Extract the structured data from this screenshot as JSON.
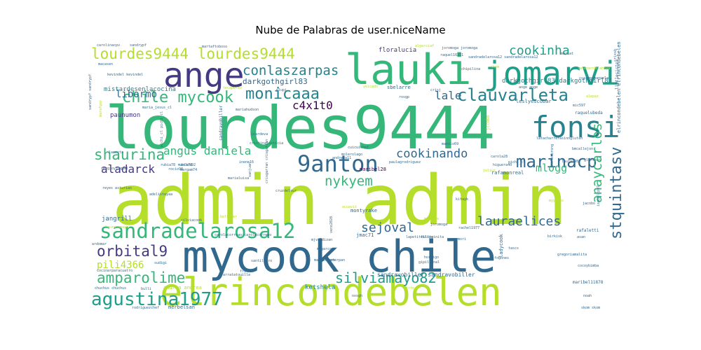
{
  "chart_data": {
    "type": "wordcloud",
    "title": "Nube de Palabras de user.niceName",
    "background": "#ffffff",
    "palette": "viridis",
    "words": [
      {
        "text": "admin admin",
        "weight": 1.0,
        "color": "#b5de2b",
        "vertical": false
      },
      {
        "text": "lourdes9444",
        "weight": 0.9,
        "color": "#35b779",
        "vertical": false
      },
      {
        "text": "mycook chile",
        "weight": 0.78,
        "color": "#31688e",
        "vertical": false
      },
      {
        "text": "elrincondebelen",
        "weight": 0.6,
        "color": "#b5de2b",
        "vertical": false
      },
      {
        "text": "lauki",
        "weight": 0.55,
        "color": "#35b779",
        "vertical": false
      },
      {
        "text": "jomarvi",
        "weight": 0.48,
        "color": "#1f9e89",
        "vertical": false
      },
      {
        "text": "ange",
        "weight": 0.46,
        "color": "#443983",
        "vertical": false
      },
      {
        "text": "fonsi",
        "weight": 0.42,
        "color": "#26828e",
        "vertical": false
      },
      {
        "text": "sandradelarosa12",
        "weight": 0.34,
        "color": "#35b779",
        "vertical": false
      },
      {
        "text": "9anton",
        "weight": 0.32,
        "color": "#31688e",
        "vertical": false
      },
      {
        "text": "agustina1977",
        "weight": 0.3,
        "color": "#1f9e89",
        "vertical": false
      },
      {
        "text": "clauvarleta",
        "weight": 0.28,
        "color": "#26828e",
        "vertical": false
      },
      {
        "text": "lourdes9444 lourdes9444",
        "weight": 0.26,
        "color": "#b5de2b",
        "vertical": false
      },
      {
        "text": "marinacp",
        "weight": 0.26,
        "color": "#31688e",
        "vertical": false
      },
      {
        "text": "monicaaa",
        "weight": 0.25,
        "color": "#26828e",
        "vertical": false
      },
      {
        "text": "amparolime",
        "weight": 0.24,
        "color": "#35b779",
        "vertical": false
      },
      {
        "text": "orbital9",
        "weight": 0.24,
        "color": "#443983",
        "vertical": false
      },
      {
        "text": "chile mycook",
        "weight": 0.24,
        "color": "#35b779",
        "vertical": false
      },
      {
        "text": "silviamayo82",
        "weight": 0.22,
        "color": "#1f9e89",
        "vertical": false
      },
      {
        "text": "shaurina",
        "weight": 0.22,
        "color": "#35b779",
        "vertical": false
      },
      {
        "text": "stquintasv",
        "weight": 0.22,
        "color": "#31688e",
        "vertical": true
      },
      {
        "text": "anaycarlos",
        "weight": 0.21,
        "color": "#35b779",
        "vertical": true
      },
      {
        "text": "conlaszarpas",
        "weight": 0.2,
        "color": "#26828e",
        "vertical": false
      },
      {
        "text": "nykyem",
        "weight": 0.2,
        "color": "#35b779",
        "vertical": false
      },
      {
        "text": "lauraelices",
        "weight": 0.2,
        "color": "#31688e",
        "vertical": false
      },
      {
        "text": "sejoval",
        "weight": 0.19,
        "color": "#31688e",
        "vertical": false
      },
      {
        "text": "cookinha",
        "weight": 0.18,
        "color": "#1f9e89",
        "vertical": false
      },
      {
        "text": "cookinando",
        "weight": 0.18,
        "color": "#31688e",
        "vertical": false
      },
      {
        "text": "angus daniela",
        "weight": 0.17,
        "color": "#35b779",
        "vertical": false
      },
      {
        "text": "aladarck",
        "weight": 0.17,
        "color": "#443983",
        "vertical": false
      },
      {
        "text": "lale",
        "weight": 0.17,
        "color": "#31688e",
        "vertical": false
      },
      {
        "text": "mlogg",
        "weight": 0.16,
        "color": "#35b779",
        "vertical": false
      },
      {
        "text": "c4x1t0",
        "weight": 0.16,
        "color": "#440154",
        "vertical": false
      },
      {
        "text": "libormo",
        "weight": 0.15,
        "color": "#31688e",
        "vertical": false
      },
      {
        "text": "pili4366",
        "weight": 0.14,
        "color": "#b5de2b",
        "vertical": false
      },
      {
        "text": "darkgothgirl83",
        "weight": 0.11,
        "color": "#31688e",
        "vertical": false
      },
      {
        "text": "darkgothgirl83 darkgothgirl83",
        "weight": 0.09,
        "color": "#26828e",
        "vertical": false
      },
      {
        "text": "mistardesenlacocina",
        "weight": 0.09,
        "color": "#26828e",
        "vertical": false
      },
      {
        "text": "paunumon",
        "weight": 0.09,
        "color": "#443983",
        "vertical": false
      },
      {
        "text": "ketshela",
        "weight": 0.09,
        "color": "#26828e",
        "vertical": false
      },
      {
        "text": "sandravobiller sandravobiller",
        "weight": 0.08,
        "color": "#31688e",
        "vertical": false
      },
      {
        "text": "jangrill",
        "weight": 0.08,
        "color": "#31688e",
        "vertical": false
      },
      {
        "text": "floralucia",
        "weight": 0.08,
        "color": "#443983",
        "vertical": false
      },
      {
        "text": "montyrake",
        "weight": 0.07,
        "color": "#31688e",
        "vertical": false
      },
      {
        "text": "maribel28",
        "weight": 0.07,
        "color": "#440154",
        "vertical": false
      },
      {
        "text": "leslyescobar",
        "weight": 0.07,
        "color": "#31688e",
        "vertical": false
      },
      {
        "text": "sbelarre",
        "weight": 0.07,
        "color": "#31688e",
        "vertical": false
      },
      {
        "text": "rafamonreal",
        "weight": 0.07,
        "color": "#31688e",
        "vertical": false
      },
      {
        "text": "ladycook",
        "weight": 0.07,
        "color": "#31688e",
        "vertical": true
      },
      {
        "text": "elrincondebelen elrincondebelen",
        "weight": 0.07,
        "color": "#31688e",
        "vertical": true
      },
      {
        "text": "andrea andrea",
        "weight": 0.07,
        "color": "#b5de2b",
        "vertical": false
      },
      {
        "text": "merbelsan",
        "weight": 0.06,
        "color": "#31688e",
        "vertical": false
      },
      {
        "text": "maribel11878",
        "weight": 0.06,
        "color": "#31688e",
        "vertical": false
      },
      {
        "text": "jmac71",
        "weight": 0.06,
        "color": "#31688e",
        "vertical": false
      },
      {
        "text": "raquelubeda",
        "weight": 0.06,
        "color": "#31688e",
        "vertical": false
      },
      {
        "text": "rafaletti",
        "weight": 0.06,
        "color": "#31688e",
        "vertical": false
      },
      {
        "text": "sandravobiller",
        "weight": 0.06,
        "color": "#31688e",
        "vertical": true
      },
      {
        "text": "jccobo",
        "weight": 0.06,
        "color": "#b5de2b",
        "vertical": true
      },
      {
        "text": "littlesister",
        "weight": 0.06,
        "color": "#31688e",
        "vertical": true
      },
      {
        "text": "crisj",
        "weight": 0.05,
        "color": "#31688e",
        "vertical": false
      },
      {
        "text": "mic597",
        "weight": 0.05,
        "color": "#31688e",
        "vertical": false
      },
      {
        "text": "julius",
        "weight": 0.05,
        "color": "#b5de2b",
        "vertical": false
      },
      {
        "text": "peterpan",
        "weight": 0.05,
        "color": "#31688e",
        "vertical": false
      },
      {
        "text": "inene16",
        "weight": 0.05,
        "color": "#31688e",
        "vertical": false
      },
      {
        "text": "higuera40",
        "weight": 0.05,
        "color": "#31688e",
        "vertical": false
      },
      {
        "text": "marialuisa",
        "weight": 0.05,
        "color": "#31688e",
        "vertical": false
      },
      {
        "text": "rosgp",
        "weight": 0.05,
        "color": "#31688e",
        "vertical": false
      },
      {
        "text": "silviacook",
        "weight": 0.04,
        "color": "#31688e",
        "vertical": false
      },
      {
        "text": "filipeinita",
        "weight": 0.04,
        "color": "#31688e",
        "vertical": false
      },
      {
        "text": "rachel1977",
        "weight": 0.04,
        "color": "#31688e",
        "vertical": false
      },
      {
        "text": "carmori",
        "weight": 0.04,
        "color": "#31688e",
        "vertical": false
      },
      {
        "text": "asan",
        "weight": 0.04,
        "color": "#31688e",
        "vertical": false
      },
      {
        "text": "birkisk",
        "weight": 0.04,
        "color": "#31688e",
        "vertical": false
      },
      {
        "text": "alepaz",
        "weight": 0.04,
        "color": "#b5de2b",
        "vertical": false
      },
      {
        "text": "sanjuan",
        "weight": 0.04,
        "color": "#31688e",
        "vertical": true
      },
      {
        "text": "reyes asturias",
        "weight": 0.04,
        "color": "#31688e",
        "vertical": false
      },
      {
        "text": "rubia78 rubia78",
        "weight": 0.04,
        "color": "#31688e",
        "vertical": false
      },
      {
        "text": "margam74",
        "weight": 0.04,
        "color": "#31688e",
        "vertical": false
      },
      {
        "text": "hormigo",
        "weight": 0.04,
        "color": "#31688e",
        "vertical": false
      },
      {
        "text": "joromoga",
        "weight": 0.04,
        "color": "#31688e",
        "vertical": false
      },
      {
        "text": "joromoga joromoga",
        "weight": 0.04,
        "color": "#31688e",
        "vertical": false
      },
      {
        "text": "chipilina",
        "weight": 0.04,
        "color": "#31688e",
        "vertical": false
      },
      {
        "text": "pichi_cl",
        "weight": 0.04,
        "color": "#31688e",
        "vertical": false
      },
      {
        "text": "cuicuichef",
        "weight": 0.04,
        "color": "#31688e",
        "vertical": false
      },
      {
        "text": "molerolago",
        "weight": 0.04,
        "color": "#31688e",
        "vertical": false
      },
      {
        "text": "andreda11",
        "weight": 0.04,
        "color": "#31688e",
        "vertical": false
      },
      {
        "text": "skom",
        "weight": 0.04,
        "color": "#b5de2b",
        "vertical": false
      },
      {
        "text": "mjvaldizan",
        "weight": 0.04,
        "color": "#31688e",
        "vertical": false
      },
      {
        "text": "mogarcar",
        "weight": 0.04,
        "color": "#31688e",
        "vertical": false
      },
      {
        "text": "malcarases",
        "weight": 0.04,
        "color": "#31688e",
        "vertical": false
      },
      {
        "text": "sandradelarosa12 sandradelarosa12",
        "weight": 0.04,
        "color": "#31688e",
        "vertical": false
      },
      {
        "text": "raquel16211",
        "weight": 0.04,
        "color": "#31688e",
        "vertical": false
      },
      {
        "text": "martaftoboso",
        "weight": 0.04,
        "color": "#31688e",
        "vertical": false
      },
      {
        "text": "carolinacpv",
        "weight": 0.04,
        "color": "#31688e",
        "vertical": false
      },
      {
        "text": "sandrypf",
        "weight": 0.04,
        "color": "#31688e",
        "vertical": false
      },
      {
        "text": "macasen",
        "weight": 0.04,
        "color": "#31688e",
        "vertical": false
      },
      {
        "text": "mariahudson",
        "weight": 0.04,
        "color": "#31688e",
        "vertical": false
      },
      {
        "text": "maria_jesus_cl",
        "weight": 0.04,
        "color": "#31688e",
        "vertical": false
      },
      {
        "text": "lasecta",
        "weight": 0.04,
        "color": "#31688e",
        "vertical": false
      },
      {
        "text": "rocio98",
        "weight": 0.04,
        "color": "#31688e",
        "vertical": false
      },
      {
        "text": "carlos92",
        "weight": 0.04,
        "color": "#31688e",
        "vertical": false
      },
      {
        "text": "carola28",
        "weight": 0.04,
        "color": "#31688e",
        "vertical": false
      },
      {
        "text": "tascs",
        "weight": 0.04,
        "color": "#31688e",
        "vertical": false
      },
      {
        "text": "fogones",
        "weight": 0.04,
        "color": "#31688e",
        "vertical": false
      },
      {
        "text": "sudigi",
        "weight": 0.04,
        "color": "#31688e",
        "vertical": false
      },
      {
        "text": "cocinarparacuatro",
        "weight": 0.04,
        "color": "#31688e",
        "vertical": false
      },
      {
        "text": "chuchus chuchus",
        "weight": 0.04,
        "color": "#31688e",
        "vertical": false
      },
      {
        "text": "rodriguezchef",
        "weight": 0.04,
        "color": "#31688e",
        "vertical": false
      },
      {
        "text": "arratatouille",
        "weight": 0.04,
        "color": "#31688e",
        "vertical": false
      },
      {
        "text": "cocoybimba",
        "weight": 0.04,
        "color": "#31688e",
        "vertical": false
      },
      {
        "text": "skom skom",
        "weight": 0.04,
        "color": "#31688e",
        "vertical": false
      },
      {
        "text": "plupi",
        "weight": 0.04,
        "color": "#31688e",
        "vertical": false
      },
      {
        "text": "bmcallejon",
        "weight": 0.04,
        "color": "#31688e",
        "vertical": false
      },
      {
        "text": "glorsous",
        "weight": 0.04,
        "color": "#31688e",
        "vertical": false
      },
      {
        "text": "lapetitekitty",
        "weight": 0.04,
        "color": "#31688e",
        "vertical": false
      },
      {
        "text": "ange ange",
        "weight": 0.04,
        "color": "#31688e",
        "vertical": false
      },
      {
        "text": "jacobo",
        "weight": 0.03,
        "color": "#31688e",
        "vertical": false
      },
      {
        "text": "noah",
        "weight": 0.03,
        "color": "#31688e",
        "vertical": false
      },
      {
        "text": "acuavit",
        "weight": 0.03,
        "color": "#b5de2b",
        "vertical": false
      },
      {
        "text": "madirre",
        "weight": 0.03,
        "color": "#b5de2b",
        "vertical": false
      },
      {
        "text": "yeicado",
        "weight": 0.03,
        "color": "#b5de2b",
        "vertical": false
      },
      {
        "text": "bettyzar",
        "weight": 0.03,
        "color": "#b5de2b",
        "vertical": false
      },
      {
        "text": "carolacorreao carolacorreao",
        "weight": 0.03,
        "color": "#31688e",
        "vertical": false
      },
      {
        "text": "crisgarran crisgarran",
        "weight": 0.03,
        "color": "#31688e",
        "vertical": true
      },
      {
        "text": "paulagrodriguez",
        "weight": 0.03,
        "color": "#31688e",
        "vertical": false
      },
      {
        "text": "algarciaf",
        "weight": 0.03,
        "color": "#b5de2b",
        "vertical": false
      },
      {
        "text": "sandrypf sandrypf",
        "weight": 0.03,
        "color": "#31688e",
        "vertical": true
      },
      {
        "text": "marafgar",
        "weight": 0.03,
        "color": "#b5de2b",
        "vertical": true
      },
      {
        "text": "lauracomayo",
        "weight": 0.03,
        "color": "#b5de2b",
        "vertical": false
      },
      {
        "text": "pirre",
        "weight": 0.03,
        "color": "#b5de2b",
        "vertical": false
      },
      {
        "text": "latacharrerasinngluten",
        "weight": 0.03,
        "color": "#31688e",
        "vertical": false
      },
      {
        "text": "isabelcp97",
        "weight": 0.03,
        "color": "#31688e",
        "vertical": true
      },
      {
        "text": "myytrax",
        "weight": 0.03,
        "color": "#b5de2b",
        "vertical": false
      },
      {
        "text": "crissb",
        "weight": 0.03,
        "color": "#31688e",
        "vertical": true
      },
      {
        "text": "kevindel kevindel",
        "weight": 0.03,
        "color": "#31688e",
        "vertical": false
      },
      {
        "text": "veno2020",
        "weight": 0.03,
        "color": "#31688e",
        "vertical": true
      },
      {
        "text": "ardomar",
        "weight": 0.03,
        "color": "#31688e",
        "vertical": false
      },
      {
        "text": "adelisteyaa",
        "weight": 0.03,
        "color": "#31688e",
        "vertical": false
      },
      {
        "text": "bulli",
        "weight": 0.03,
        "color": "#31688e",
        "vertical": false
      },
      {
        "text": "nosgh",
        "weight": 0.03,
        "color": "#31688e",
        "vertical": false
      },
      {
        "text": "cristinajusticia",
        "weight": 0.03,
        "color": "#31688e",
        "vertical": false
      },
      {
        "text": "ccardeva",
        "weight": 0.03,
        "color": "#31688e",
        "vertical": false
      },
      {
        "text": "cruzdelsur",
        "weight": 0.03,
        "color": "#31688e",
        "vertical": false
      },
      {
        "text": "santiluoro",
        "weight": 0.03,
        "color": "#31688e",
        "vertical": false
      },
      {
        "text": "mariat",
        "weight": 0.03,
        "color": "#31688e",
        "vertical": false
      },
      {
        "text": "asolesbrong",
        "weight": 0.03,
        "color": "#31688e",
        "vertical": true
      },
      {
        "text": "fraf",
        "weight": 0.03,
        "color": "#31688e",
        "vertical": false
      },
      {
        "text": "pichi_cl pichi_cl",
        "weight": 0.03,
        "color": "#31688e",
        "vertical": true
      },
      {
        "text": "gregoriamalita",
        "weight": 0.03,
        "color": "#31688e",
        "vertical": false
      },
      {
        "text": "laura1982",
        "weight": 0.03,
        "color": "#31688e",
        "vertical": false
      },
      {
        "text": "sergioyraquel",
        "weight": 0.03,
        "color": "#31688e",
        "vertical": false
      },
      {
        "text": "tecaperez",
        "weight": 0.03,
        "color": "#b5de2b",
        "vertical": false
      },
      {
        "text": "neuenerdelahoya",
        "weight": 0.03,
        "color": "#b5de2b",
        "vertical": false
      },
      {
        "text": "ccarmenmanuela",
        "weight": 0.03,
        "color": "#31688e",
        "vertical": false
      },
      {
        "text": "gipillinal",
        "weight": 0.03,
        "color": "#31688e",
        "vertical": false
      },
      {
        "text": "kitayk",
        "weight": 0.03,
        "color": "#31688e",
        "vertical": false
      },
      {
        "text": "manolo69",
        "weight": 0.03,
        "color": "#31688e",
        "vertical": false
      }
    ]
  }
}
